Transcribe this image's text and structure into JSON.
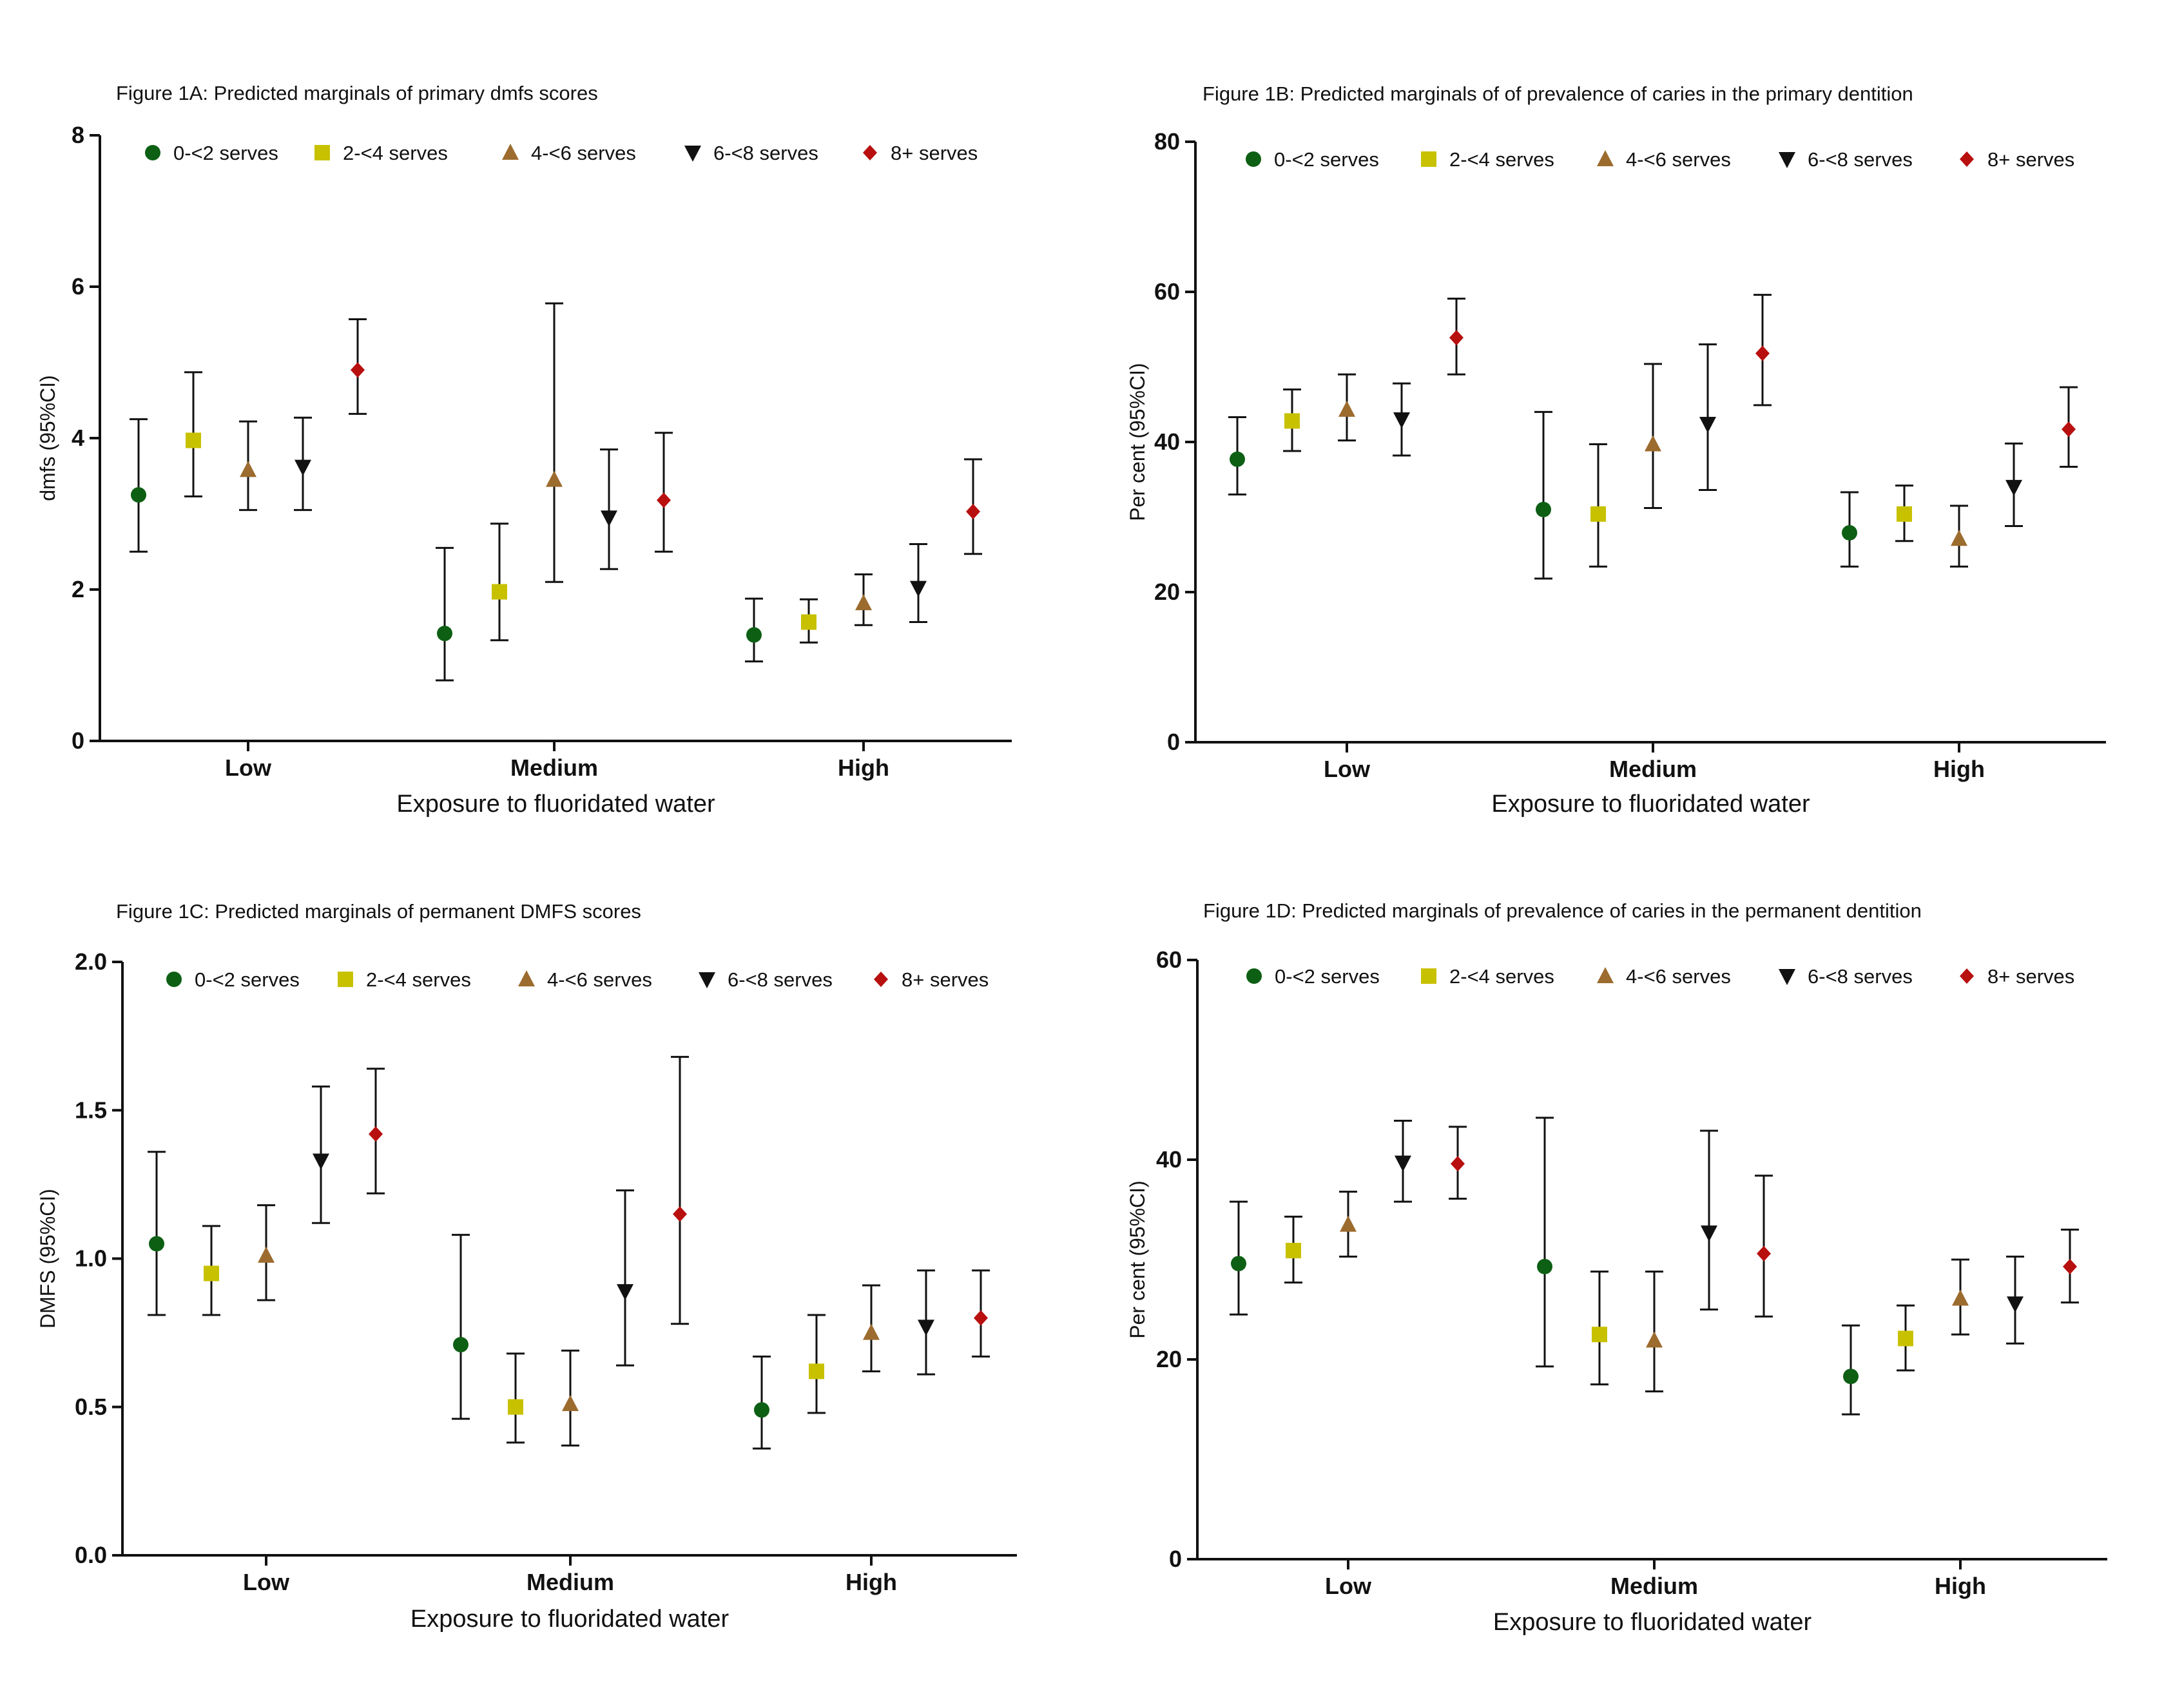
{
  "chart_data": [
    {
      "id": "A",
      "type": "scatter",
      "title": "Figure 1A: Predicted marginals of primary dmfs scores",
      "xlabel": "Exposure to fluoridated water",
      "ylabel": "dmfs (95%CI)",
      "categories": [
        "Low",
        "Medium",
        "High"
      ],
      "ylim": [
        0,
        8
      ],
      "yticks": [
        "0",
        "2",
        "4",
        "6",
        "8"
      ],
      "legend_position": "top",
      "series": [
        {
          "name": "0-<2 serves",
          "marker": "circle",
          "color": "#0d5f14",
          "values": [
            3.25,
            1.42,
            1.4
          ],
          "lower": [
            2.5,
            0.8,
            1.05
          ],
          "upper": [
            4.25,
            2.55,
            1.88
          ]
        },
        {
          "name": "2-<4 serves",
          "marker": "square",
          "color": "#c8c100",
          "values": [
            3.97,
            1.97,
            1.57
          ],
          "lower": [
            3.23,
            1.33,
            1.3
          ],
          "upper": [
            4.87,
            2.87,
            1.87
          ]
        },
        {
          "name": "4-<6 serves",
          "marker": "triangle-up",
          "color": "#9c6b2e",
          "values": [
            3.58,
            3.45,
            1.82
          ],
          "lower": [
            3.05,
            2.1,
            1.53
          ],
          "upper": [
            4.22,
            5.78,
            2.2
          ]
        },
        {
          "name": "6-<8 serves",
          "marker": "triangle-down",
          "color": "#111111",
          "values": [
            3.62,
            2.95,
            2.02
          ],
          "lower": [
            3.05,
            2.27,
            1.57
          ],
          "upper": [
            4.27,
            3.85,
            2.6
          ]
        },
        {
          "name": "8+ serves",
          "marker": "diamond",
          "color": "#b80f0f",
          "values": [
            4.9,
            3.18,
            3.03
          ],
          "lower": [
            4.32,
            2.5,
            2.47
          ],
          "upper": [
            5.57,
            4.07,
            3.72
          ]
        }
      ]
    },
    {
      "id": "B",
      "type": "scatter",
      "title": "Figure 1B:  Predicted marginals of of prevalence of caries in the primary dentition",
      "xlabel": "Exposure to fluoridated water",
      "ylabel": "Per cent (95%CI)",
      "categories": [
        "Low",
        "Medium",
        "High"
      ],
      "ylim": [
        0,
        80
      ],
      "yticks": [
        "0",
        "20",
        "40",
        "60",
        "80"
      ],
      "legend_position": "top",
      "series": [
        {
          "name": "0-<2 serves",
          "marker": "circle",
          "color": "#0d5f14",
          "values": [
            37.7,
            31.0,
            27.9
          ],
          "lower": [
            33.0,
            21.8,
            23.4
          ],
          "upper": [
            43.3,
            44.0,
            33.3
          ]
        },
        {
          "name": "2-<4 serves",
          "marker": "square",
          "color": "#c8c100",
          "values": [
            42.8,
            30.4,
            30.4
          ],
          "lower": [
            38.8,
            23.4,
            26.8
          ],
          "upper": [
            47.0,
            39.7,
            34.2
          ]
        },
        {
          "name": "4-<6 serves",
          "marker": "triangle-up",
          "color": "#9c6b2e",
          "values": [
            44.3,
            39.7,
            27.1
          ],
          "lower": [
            40.2,
            31.2,
            23.4
          ],
          "upper": [
            49.0,
            50.4,
            31.5
          ]
        },
        {
          "name": "6-<8 serves",
          "marker": "triangle-down",
          "color": "#111111",
          "values": [
            43.0,
            42.4,
            34.0
          ],
          "lower": [
            38.2,
            33.6,
            28.8
          ],
          "upper": [
            47.8,
            53.0,
            39.8
          ]
        },
        {
          "name": "8+ serves",
          "marker": "diamond",
          "color": "#b80f0f",
          "values": [
            53.9,
            51.8,
            41.7
          ],
          "lower": [
            49.0,
            44.9,
            36.7
          ],
          "upper": [
            59.1,
            59.6,
            47.3
          ]
        }
      ]
    },
    {
      "id": "C",
      "type": "scatter",
      "title": "Figure 1C:  Predicted marginals of permanent DMFS scores",
      "xlabel": "Exposure to fluoridated water",
      "ylabel": "DMFS (95%CI)",
      "categories": [
        "Low",
        "Medium",
        "High"
      ],
      "ylim": [
        0,
        2
      ],
      "yticks": [
        "0.0",
        "0.5",
        "1.0",
        "1.5",
        "2.0"
      ],
      "legend_position": "top",
      "series": [
        {
          "name": "0-<2 serves",
          "marker": "circle",
          "color": "#0d5f14",
          "values": [
            1.05,
            0.71,
            0.49
          ],
          "lower": [
            0.81,
            0.46,
            0.36
          ],
          "upper": [
            1.36,
            1.08,
            0.67
          ]
        },
        {
          "name": "2-<4 serves",
          "marker": "square",
          "color": "#c8c100",
          "values": [
            0.95,
            0.5,
            0.62
          ],
          "lower": [
            0.81,
            0.38,
            0.48
          ],
          "upper": [
            1.11,
            0.68,
            0.81
          ]
        },
        {
          "name": "4-<6 serves",
          "marker": "triangle-up",
          "color": "#9c6b2e",
          "values": [
            1.01,
            0.51,
            0.75
          ],
          "lower": [
            0.86,
            0.37,
            0.62
          ],
          "upper": [
            1.18,
            0.69,
            0.91
          ]
        },
        {
          "name": "6-<8 serves",
          "marker": "triangle-down",
          "color": "#111111",
          "values": [
            1.33,
            0.89,
            0.77
          ],
          "lower": [
            1.12,
            0.64,
            0.61
          ],
          "upper": [
            1.58,
            1.23,
            0.96
          ]
        },
        {
          "name": "8+ serves",
          "marker": "diamond",
          "color": "#b80f0f",
          "values": [
            1.42,
            1.15,
            0.8
          ],
          "lower": [
            1.22,
            0.78,
            0.67
          ],
          "upper": [
            1.64,
            1.68,
            0.96
          ]
        }
      ]
    },
    {
      "id": "D",
      "type": "scatter",
      "title": "Figure 1D:  Predicted marginals of prevalence of caries in the permanent dentition",
      "xlabel": "Exposure to fluoridated water",
      "ylabel": "Per cent (95%CI)",
      "categories": [
        "Low",
        "Medium",
        "High"
      ],
      "ylim": [
        0,
        60
      ],
      "yticks": [
        "0",
        "20",
        "40",
        "60"
      ],
      "legend_position": "top",
      "series": [
        {
          "name": "0-<2 serves",
          "marker": "circle",
          "color": "#0d5f14",
          "values": [
            29.6,
            29.3,
            18.3
          ],
          "lower": [
            24.5,
            19.3,
            14.5
          ],
          "upper": [
            35.8,
            44.2,
            23.4
          ]
        },
        {
          "name": "2-<4 serves",
          "marker": "square",
          "color": "#c8c100",
          "values": [
            30.9,
            22.5,
            22.1
          ],
          "lower": [
            27.7,
            17.5,
            18.9
          ],
          "upper": [
            34.3,
            28.8,
            25.4
          ]
        },
        {
          "name": "4-<6 serves",
          "marker": "triangle-up",
          "color": "#9c6b2e",
          "values": [
            33.5,
            21.9,
            26.1
          ],
          "lower": [
            30.3,
            16.8,
            22.5
          ],
          "upper": [
            36.8,
            28.8,
            30.0
          ]
        },
        {
          "name": "6-<8 serves",
          "marker": "triangle-down",
          "color": "#111111",
          "values": [
            39.7,
            32.7,
            25.6
          ],
          "lower": [
            35.8,
            25.0,
            21.6
          ],
          "upper": [
            43.9,
            42.9,
            30.3
          ]
        },
        {
          "name": "8+ serves",
          "marker": "diamond",
          "color": "#b80f0f",
          "values": [
            39.6,
            30.6,
            29.3
          ],
          "lower": [
            36.1,
            24.3,
            25.7
          ],
          "upper": [
            43.3,
            38.4,
            33.0
          ]
        }
      ]
    }
  ]
}
